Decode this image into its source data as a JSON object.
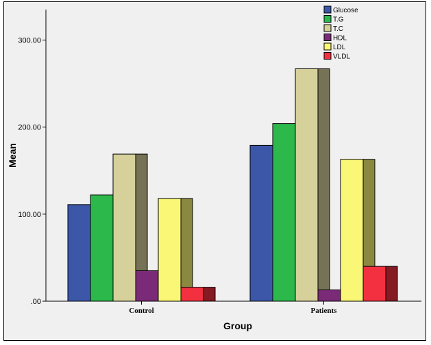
{
  "chart_data": {
    "type": "bar",
    "title": "",
    "xlabel": "Group",
    "ylabel": "Mean",
    "categories": [
      "Control",
      "Patients"
    ],
    "series": [
      {
        "name": "Glucose",
        "color": "#3c57a8",
        "values": [
          111,
          179
        ]
      },
      {
        "name": "T.G",
        "color": "#2db84b",
        "values": [
          122,
          204
        ]
      },
      {
        "name": "T.C",
        "color": "#d6d09a",
        "values": [
          169,
          267
        ]
      },
      {
        "name": "HDL",
        "color": "#7b2a78",
        "values": [
          35,
          13
        ]
      },
      {
        "name": "LDL",
        "color": "#fbf776",
        "values": [
          118,
          163
        ]
      },
      {
        "name": "VLDL",
        "color": "#f23040",
        "values": [
          16,
          40
        ]
      }
    ],
    "ylim": [
      0,
      335
    ],
    "yticks": [
      0,
      100,
      200,
      300
    ],
    "ytick_labels": [
      ".00",
      "100.00",
      "200.00",
      "300.00"
    ],
    "legend_position": "top-right",
    "grid": false,
    "plot_background": "#f0f0f0",
    "bar_border_color": "#000000"
  }
}
